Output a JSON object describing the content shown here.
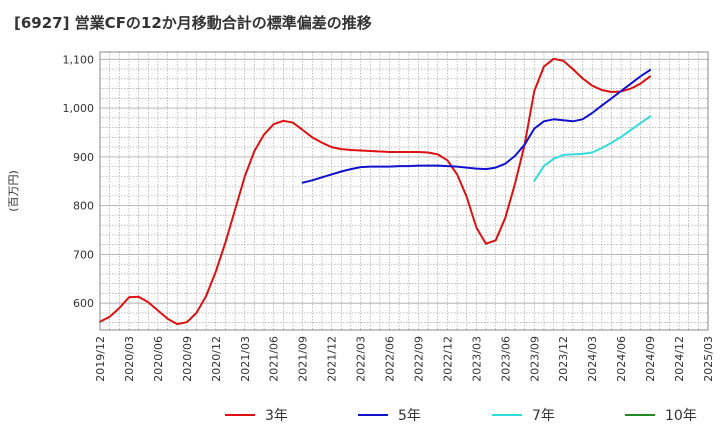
{
  "chart_data": {
    "type": "line",
    "title": "[6927]  営業CFの12か月移動合計の標準偏差の推移",
    "ylabel": "(百万円)",
    "xlabel": "",
    "ylim": [
      545,
      1115
    ],
    "yticks": [
      600,
      700,
      800,
      900,
      1000,
      1100
    ],
    "ytick_labels": [
      "600",
      "700",
      "800",
      "900",
      "1,000",
      "1,100"
    ],
    "x_start": "2019/12",
    "x_end": "2025/03",
    "xtick_labels": [
      "2019/12",
      "2020/03",
      "2020/06",
      "2020/09",
      "2020/12",
      "2021/03",
      "2021/06",
      "2021/09",
      "2021/12",
      "2022/03",
      "2022/06",
      "2022/09",
      "2022/12",
      "2023/03",
      "2023/06",
      "2023/09",
      "2023/12",
      "2024/03",
      "2024/06",
      "2024/09",
      "2024/12",
      "2025/03"
    ],
    "grid": true,
    "legend_position": "bottom",
    "series": [
      {
        "name": "3年",
        "color": "#dd1111",
        "x": [
          "2019/12",
          "2020/01",
          "2020/02",
          "2020/03",
          "2020/04",
          "2020/05",
          "2020/06",
          "2020/07",
          "2020/08",
          "2020/09",
          "2020/10",
          "2020/11",
          "2020/12",
          "2021/01",
          "2021/02",
          "2021/03",
          "2021/04",
          "2021/05",
          "2021/06",
          "2021/07",
          "2021/08",
          "2021/09",
          "2021/10",
          "2021/11",
          "2021/12",
          "2022/01",
          "2022/02",
          "2022/03",
          "2022/04",
          "2022/05",
          "2022/06",
          "2022/07",
          "2022/08",
          "2022/09",
          "2022/10",
          "2022/11",
          "2022/12",
          "2023/01",
          "2023/02",
          "2023/03",
          "2023/04",
          "2023/05",
          "2023/06",
          "2023/07",
          "2023/08",
          "2023/09",
          "2023/10",
          "2023/11",
          "2023/12",
          "2024/01",
          "2024/02",
          "2024/03",
          "2024/04",
          "2024/05",
          "2024/06",
          "2024/07",
          "2024/08",
          "2024/09"
        ],
        "values": [
          562,
          572,
          590,
          612,
          613,
          602,
          585,
          568,
          557,
          561,
          580,
          615,
          665,
          725,
          792,
          860,
          912,
          946,
          967,
          974,
          970,
          955,
          940,
          929,
          920,
          916,
          914,
          913,
          912,
          911,
          910,
          910,
          910,
          910,
          909,
          905,
          893,
          864,
          818,
          755,
          722,
          729,
          775,
          845,
          925,
          1035,
          1085,
          1101,
          1097,
          1080,
          1061,
          1046,
          1037,
          1033,
          1034,
          1040,
          1050,
          1065
        ]
      },
      {
        "name": "5年",
        "color": "#1111cc",
        "x": [
          "2021/09",
          "2021/10",
          "2021/11",
          "2021/12",
          "2022/01",
          "2022/02",
          "2022/03",
          "2022/04",
          "2022/05",
          "2022/06",
          "2022/07",
          "2022/08",
          "2022/09",
          "2022/10",
          "2022/11",
          "2022/12",
          "2023/01",
          "2023/02",
          "2023/03",
          "2023/04",
          "2023/05",
          "2023/06",
          "2023/07",
          "2023/08",
          "2023/09",
          "2023/10",
          "2023/11",
          "2023/12",
          "2024/01",
          "2024/02",
          "2024/03",
          "2024/04",
          "2024/05",
          "2024/06",
          "2024/07",
          "2024/08",
          "2024/09"
        ],
        "values": [
          847,
          852,
          858,
          864,
          870,
          875,
          879,
          880,
          880,
          880,
          881,
          881,
          882,
          882,
          882,
          881,
          880,
          878,
          876,
          875,
          878,
          886,
          902,
          925,
          958,
          973,
          977,
          975,
          973,
          977,
          990,
          1005,
          1020,
          1035,
          1050,
          1065,
          1078
        ]
      },
      {
        "name": "7年",
        "color": "#33dddd",
        "x": [
          "2023/09",
          "2023/10",
          "2023/11",
          "2023/12",
          "2024/01",
          "2024/02",
          "2024/03",
          "2024/04",
          "2024/05",
          "2024/06",
          "2024/07",
          "2024/08",
          "2024/09"
        ],
        "values": [
          851,
          881,
          896,
          904,
          905,
          906,
          909,
          918,
          929,
          941,
          955,
          969,
          983
        ]
      },
      {
        "name": "10年",
        "color": "#228822",
        "x": [],
        "values": []
      }
    ]
  }
}
